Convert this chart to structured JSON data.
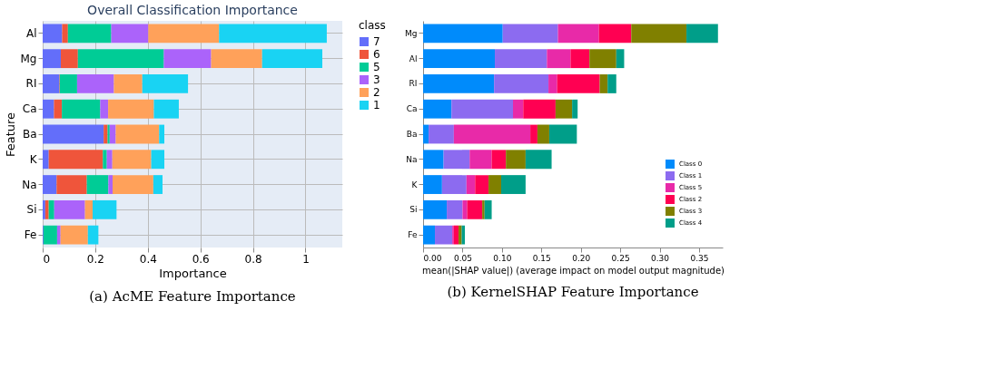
{
  "chart_data": [
    {
      "type": "bar",
      "orientation": "horizontal",
      "stacked": true,
      "title": "Overall Classification Importance",
      "xlabel": "Importance",
      "ylabel": "Feature",
      "legend_title": "class",
      "legend": "right",
      "grid": true,
      "categories": [
        "Al",
        "Mg",
        "RI",
        "Ca",
        "Ba",
        "K",
        "Na",
        "Si",
        "Fe"
      ],
      "xlim": [
        0,
        1.14
      ],
      "xticks": [
        0,
        0.2,
        0.4,
        0.6,
        0.8,
        1
      ],
      "series": [
        {
          "name": "7",
          "color": "#636efa",
          "values": [
            0.074,
            0.069,
            0.063,
            0.043,
            0.232,
            0.023,
            0.053,
            0.01,
            0.003
          ]
        },
        {
          "name": "6",
          "color": "#ef553b",
          "values": [
            0.022,
            0.065,
            0.002,
            0.03,
            0.015,
            0.206,
            0.115,
            0.013,
            0
          ]
        },
        {
          "name": "5",
          "color": "#00cc96",
          "values": [
            0.165,
            0.327,
            0.066,
            0.146,
            0.008,
            0.015,
            0.082,
            0.021,
            0.052
          ]
        },
        {
          "name": "3",
          "color": "#ab63fa",
          "values": [
            0.141,
            0.18,
            0.14,
            0.03,
            0.023,
            0.021,
            0.016,
            0.117,
            0.013
          ]
        },
        {
          "name": "2",
          "color": "#ffa15a",
          "values": [
            0.269,
            0.194,
            0.108,
            0.174,
            0.165,
            0.148,
            0.155,
            0.029,
            0.104
          ]
        },
        {
          "name": "1",
          "color": "#19d3f3",
          "values": [
            0.41,
            0.229,
            0.174,
            0.095,
            0.02,
            0.05,
            0.035,
            0.091,
            0.04
          ]
        }
      ],
      "annotations": [
        "(a) AcME Feature Importance"
      ]
    },
    {
      "type": "bar",
      "orientation": "horizontal",
      "stacked": true,
      "xlabel": "mean(|SHAP value|) (average impact on model output magnitude)",
      "legend": "bottom right",
      "categories": [
        "Mg",
        "Al",
        "RI",
        "Ca",
        "Ba",
        "Na",
        "K",
        "Si",
        "Fe"
      ],
      "xlim": [
        0,
        0.38
      ],
      "xticks": [
        {
          "value": 0,
          "label": "0.00"
        },
        {
          "value": 0.05,
          "label": "0.05"
        },
        {
          "value": 0.1,
          "label": "0.10"
        },
        {
          "value": 0.15,
          "label": "0.15"
        },
        {
          "value": 0.2,
          "label": "0.20"
        },
        {
          "value": 0.25,
          "label": "0.25"
        },
        {
          "value": 0.3,
          "label": "0.30"
        },
        {
          "value": 0.35,
          "label": "0.35"
        }
      ],
      "series": [
        {
          "name": "Class 0",
          "color": "#008bfb",
          "values": [
            0.101,
            0.091,
            0.09,
            0.036,
            0.007,
            0.026,
            0.024,
            0.03,
            0.015
          ]
        },
        {
          "name": "Class 1",
          "color": "#8c6bf0",
          "values": [
            0.07,
            0.066,
            0.069,
            0.078,
            0.032,
            0.033,
            0.031,
            0.02,
            0.022
          ]
        },
        {
          "name": "Class 5",
          "color": "#e82aa8",
          "values": [
            0.052,
            0.03,
            0.011,
            0.013,
            0.097,
            0.028,
            0.011,
            0.006,
            0.002
          ]
        },
        {
          "name": "Class 2",
          "color": "#ff0052",
          "values": [
            0.041,
            0.024,
            0.054,
            0.041,
            0.009,
            0.018,
            0.017,
            0.019,
            0.006
          ]
        },
        {
          "name": "Class 3",
          "color": "#808000",
          "values": [
            0.07,
            0.034,
            0.01,
            0.021,
            0.015,
            0.025,
            0.016,
            0.003,
            0.004
          ]
        },
        {
          "name": "Class 4",
          "color": "#009e89",
          "values": [
            0.04,
            0.01,
            0.011,
            0.007,
            0.035,
            0.033,
            0.031,
            0.009,
            0.004
          ]
        }
      ],
      "annotations": [
        "(b) KernelSHAP Feature Importance"
      ]
    }
  ]
}
